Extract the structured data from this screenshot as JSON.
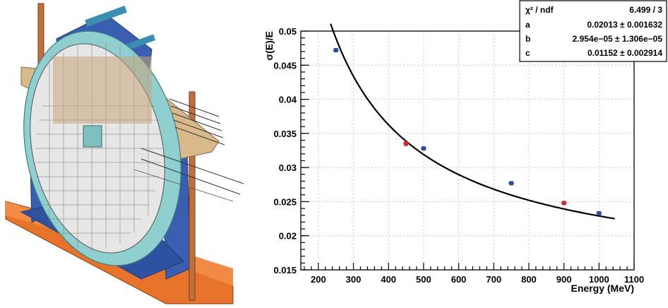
{
  "chart_data": {
    "type": "scatter",
    "title": "",
    "xlabel": "Energy (MeV)",
    "ylabel": "σ(E)/E",
    "xlim": [
      150,
      1100
    ],
    "ylim": [
      0.015,
      0.05
    ],
    "xticks": [
      200,
      300,
      400,
      500,
      600,
      700,
      800,
      900,
      1000,
      1100
    ],
    "yticks": [
      0.015,
      0.02,
      0.025,
      0.03,
      0.035,
      0.04,
      0.045,
      0.05
    ],
    "xtick_labels": [
      "200",
      "300",
      "400",
      "500",
      "600",
      "700",
      "800",
      "900",
      "1000",
      "1100"
    ],
    "ytick_labels": [
      "0.015",
      "0.02",
      "0.025",
      "0.03",
      "0.035",
      "0.04",
      "0.045",
      "0.05"
    ],
    "grid": true,
    "points": [
      {
        "x": 250,
        "y": 0.0472,
        "yerr": 0.0003,
        "color": "#2a4ba8"
      },
      {
        "x": 450,
        "y": 0.0335,
        "yerr": 0.0004,
        "color": "#cc2a2a"
      },
      {
        "x": 500,
        "y": 0.0328,
        "yerr": 0.0003,
        "color": "#2a4ba8"
      },
      {
        "x": 750,
        "y": 0.0277,
        "yerr": 0.0003,
        "color": "#2a4ba8"
      },
      {
        "x": 900,
        "y": 0.0248,
        "yerr": 0.0003,
        "color": "#cc2a2a"
      },
      {
        "x": 1000,
        "y": 0.0233,
        "yerr": 0.0003,
        "color": "#2a4ba8"
      }
    ],
    "fit": {
      "x_range": [
        235,
        1045
      ],
      "a": 0.02013,
      "b": 2.954e-05,
      "c": 0.01152
    },
    "stats_box": {
      "placement": "top-right",
      "rows": [
        {
          "label": "χ² / ndf",
          "value": "6.499 / 3"
        },
        {
          "label": "a",
          "value": "0.02013 ± 0.001632"
        },
        {
          "label": "b",
          "value": "2.954e−05 ± 1.306e−05"
        },
        {
          "label": "c",
          "value": "0.01152 ± 0.002914"
        }
      ]
    }
  },
  "colors": {
    "frame_blue": "#3a5fb0",
    "ring_teal": "#8fcfcf",
    "plate_orange": "#e8732a",
    "plate_tan": "#d9b98c",
    "rod_copper": "#c0703a",
    "crystal_gray": "#e6e6e6"
  }
}
